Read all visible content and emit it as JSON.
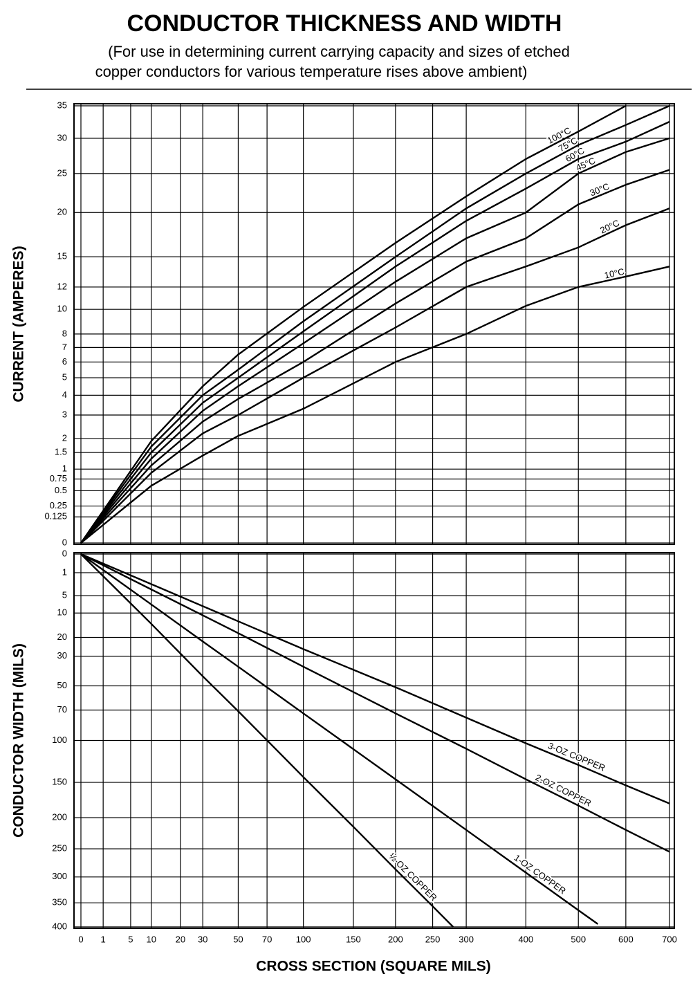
{
  "title": "CONDUCTOR THICKNESS AND WIDTH",
  "subtitle": [
    "(For use in determining current carrying capacity and sizes of etched",
    "copper conductors for various temperature rises above ambient)"
  ],
  "chart_data": [
    {
      "type": "line",
      "ylabel": "CURRENT (AMPERES)",
      "xscale": "sqrt",
      "yscale": "sqrt",
      "grid": true,
      "xtick_labels": false,
      "xlim": [
        0,
        700
      ],
      "ylim": [
        0,
        35
      ],
      "xticks": [
        0,
        1,
        5,
        10,
        20,
        30,
        50,
        70,
        100,
        150,
        200,
        250,
        300,
        400,
        500,
        600,
        700
      ],
      "yticks": [
        0,
        0.125,
        0.25,
        0.5,
        0.75,
        1,
        1.5,
        2,
        3,
        4,
        5,
        6,
        7,
        8,
        10,
        12,
        15,
        20,
        25,
        30,
        35
      ],
      "series": [
        {
          "name": "10°C",
          "color": "#000000",
          "x": [
            0,
            10,
            30,
            50,
            100,
            200,
            300,
            400,
            500,
            600,
            700
          ],
          "values": [
            0,
            0.6,
            1.4,
            2.1,
            3.3,
            6,
            8,
            10.3,
            12,
            13,
            14
          ]
        },
        {
          "name": "20°C",
          "color": "#000000",
          "x": [
            0,
            10,
            30,
            50,
            100,
            200,
            300,
            400,
            500,
            600,
            700
          ],
          "values": [
            0,
            0.9,
            2.2,
            3,
            5,
            8.5,
            12,
            14,
            16,
            18.5,
            20.5
          ]
        },
        {
          "name": "30°C",
          "color": "#000000",
          "x": [
            0,
            10,
            30,
            50,
            100,
            200,
            300,
            400,
            500,
            600,
            700
          ],
          "values": [
            0,
            1.1,
            2.7,
            3.8,
            6,
            10.5,
            14.5,
            17,
            21,
            23.5,
            25.5
          ]
        },
        {
          "name": "45°C",
          "color": "#000000",
          "x": [
            0,
            10,
            30,
            50,
            100,
            200,
            300,
            400,
            500,
            600,
            700
          ],
          "values": [
            0,
            1.3,
            3.2,
            4.5,
            7.3,
            12.5,
            17,
            20,
            25,
            28,
            30
          ]
        },
        {
          "name": "60°C",
          "color": "#000000",
          "x": [
            0,
            10,
            30,
            50,
            100,
            200,
            300,
            400,
            500,
            600,
            700
          ],
          "values": [
            0,
            1.5,
            3.6,
            5,
            8.2,
            14,
            19,
            23,
            27,
            29.5,
            32.5
          ]
        },
        {
          "name": "75°C",
          "color": "#000000",
          "x": [
            0,
            10,
            30,
            50,
            100,
            200,
            300,
            400,
            500,
            600,
            700
          ],
          "values": [
            0,
            1.7,
            4,
            5.5,
            9,
            15,
            20.5,
            25,
            29,
            32,
            35
          ]
        },
        {
          "name": "100°C",
          "color": "#000000",
          "x": [
            0,
            10,
            30,
            50,
            100,
            200,
            300,
            400,
            500,
            600
          ],
          "values": [
            0,
            1.9,
            4.5,
            6.5,
            10.2,
            16.5,
            22,
            27,
            31,
            35
          ]
        }
      ]
    },
    {
      "type": "line",
      "ylabel": "CONDUCTOR WIDTH (MILS)",
      "xlabel": "CROSS SECTION (SQUARE MILS)",
      "xscale": "sqrt",
      "yscale": "sqrt",
      "yreverse": true,
      "grid": true,
      "xlim": [
        0,
        700
      ],
      "ylim": [
        0,
        400
      ],
      "xticks": [
        0,
        1,
        5,
        10,
        20,
        30,
        50,
        70,
        100,
        150,
        200,
        250,
        300,
        400,
        500,
        600,
        700
      ],
      "yticks": [
        0,
        1,
        5,
        10,
        20,
        30,
        50,
        70,
        100,
        150,
        200,
        250,
        300,
        350,
        400
      ],
      "series": [
        {
          "name": "½-OZ COPPER",
          "color": "#000000",
          "x": [
            0,
            10,
            30,
            50,
            100,
            150,
            200,
            250,
            280
          ],
          "values": [
            0,
            14,
            43,
            71,
            143,
            214,
            286,
            357,
            400
          ]
        },
        {
          "name": "1-OZ COPPER",
          "color": "#000000",
          "x": [
            0,
            10,
            30,
            50,
            100,
            200,
            300,
            400,
            500,
            540
          ],
          "values": [
            0,
            7.3,
            22,
            36.5,
            73,
            146,
            219,
            292,
            365,
            394
          ]
        },
        {
          "name": "2-OZ COPPER",
          "color": "#000000",
          "x": [
            0,
            50,
            100,
            200,
            300,
            400,
            500,
            600,
            700
          ],
          "values": [
            0,
            18,
            36.5,
            73,
            109,
            146,
            182,
            219,
            255
          ]
        },
        {
          "name": "3-OZ COPPER",
          "color": "#000000",
          "x": [
            0,
            50,
            100,
            200,
            300,
            400,
            500,
            600,
            700
          ],
          "values": [
            0,
            13,
            26,
            51,
            77,
            103,
            128,
            154,
            179
          ]
        }
      ]
    }
  ]
}
